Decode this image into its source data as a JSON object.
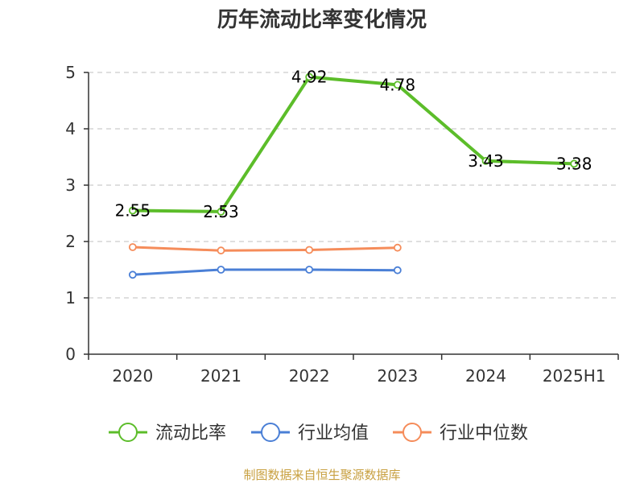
{
  "chart_data": {
    "type": "line",
    "title": "历年流动比率变化情况",
    "categories": [
      "2020",
      "2021",
      "2022",
      "2023",
      "2024",
      "2025H1"
    ],
    "ylim": [
      0,
      5
    ],
    "yticks": [
      0,
      1,
      2,
      3,
      4,
      5
    ],
    "grid": true,
    "legend_position": "bottom",
    "series": [
      {
        "name": "流动比率",
        "color": "#5cbd2a",
        "values": [
          2.55,
          2.53,
          4.92,
          4.78,
          3.43,
          3.38
        ],
        "labels": [
          "2.55",
          "2.53",
          "4.92",
          "4.78",
          "3.43",
          "3.38"
        ]
      },
      {
        "name": "行业均值",
        "color": "#4a7fd6",
        "values": [
          1.41,
          1.5,
          1.5,
          1.49,
          null,
          null
        ]
      },
      {
        "name": "行业中位数",
        "color": "#f58c5a",
        "values": [
          1.9,
          1.84,
          1.85,
          1.89,
          null,
          null
        ]
      }
    ]
  },
  "source": "制图数据来自恒生聚源数据库"
}
